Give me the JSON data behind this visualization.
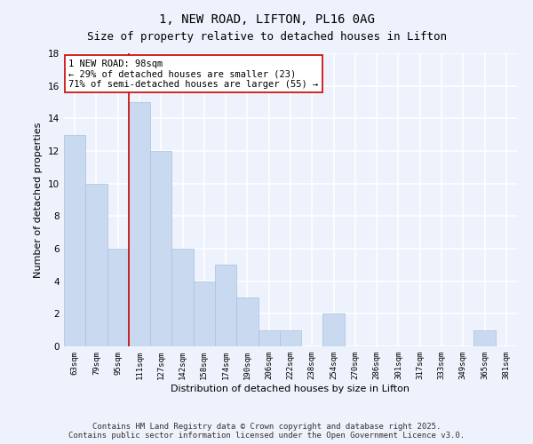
{
  "title1": "1, NEW ROAD, LIFTON, PL16 0AG",
  "title2": "Size of property relative to detached houses in Lifton",
  "xlabel": "Distribution of detached houses by size in Lifton",
  "ylabel": "Number of detached properties",
  "categories": [
    "63sqm",
    "79sqm",
    "95sqm",
    "111sqm",
    "127sqm",
    "142sqm",
    "158sqm",
    "174sqm",
    "190sqm",
    "206sqm",
    "222sqm",
    "238sqm",
    "254sqm",
    "270sqm",
    "286sqm",
    "301sqm",
    "317sqm",
    "333sqm",
    "349sqm",
    "365sqm",
    "381sqm"
  ],
  "values": [
    13,
    10,
    6,
    15,
    12,
    6,
    4,
    5,
    3,
    1,
    1,
    0,
    2,
    0,
    0,
    0,
    0,
    0,
    0,
    1,
    0
  ],
  "bar_color": "#c9daf0",
  "bar_edge_color": "#a8c0de",
  "vline_x_index": 3,
  "vline_color": "#cc0000",
  "annotation_line1": "1 NEW ROAD: 98sqm",
  "annotation_line2": "← 29% of detached houses are smaller (23)",
  "annotation_line3": "71% of semi-detached houses are larger (55) →",
  "annotation_box_color": "white",
  "annotation_box_edge": "#cc0000",
  "ylim": [
    0,
    18
  ],
  "yticks": [
    0,
    2,
    4,
    6,
    8,
    10,
    12,
    14,
    16,
    18
  ],
  "footer": "Contains HM Land Registry data © Crown copyright and database right 2025.\nContains public sector information licensed under the Open Government Licence v3.0.",
  "bg_color": "#edf2fc",
  "grid_color": "#ffffff",
  "title_fontsize": 10,
  "subtitle_fontsize": 9,
  "annotation_fontsize": 7.5,
  "footer_fontsize": 6.5,
  "ylabel_fontsize": 8,
  "xlabel_fontsize": 8
}
